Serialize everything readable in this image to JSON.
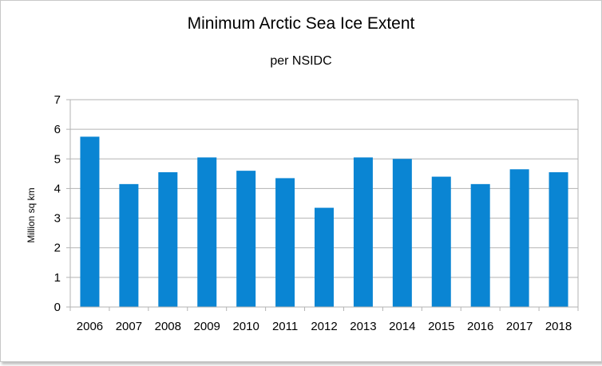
{
  "chart_data": {
    "type": "bar",
    "title": "Minimum Arctic Sea Ice Extent",
    "subtitle": "per NSIDC",
    "xlabel": "",
    "ylabel": "Million sq km",
    "categories": [
      "2006",
      "2007",
      "2008",
      "2009",
      "2010",
      "2011",
      "2012",
      "2013",
      "2014",
      "2015",
      "2016",
      "2017",
      "2018"
    ],
    "values": [
      5.75,
      4.15,
      4.55,
      5.05,
      4.6,
      4.35,
      3.35,
      5.05,
      5.0,
      4.4,
      4.15,
      4.65,
      4.55
    ],
    "ylim": [
      0,
      7
    ],
    "yticks": [
      0,
      1,
      2,
      3,
      4,
      5,
      6,
      7
    ],
    "grid": true,
    "legend": "none",
    "bar_color": "#0A85D3",
    "grid_color": "#B3B3B3"
  }
}
